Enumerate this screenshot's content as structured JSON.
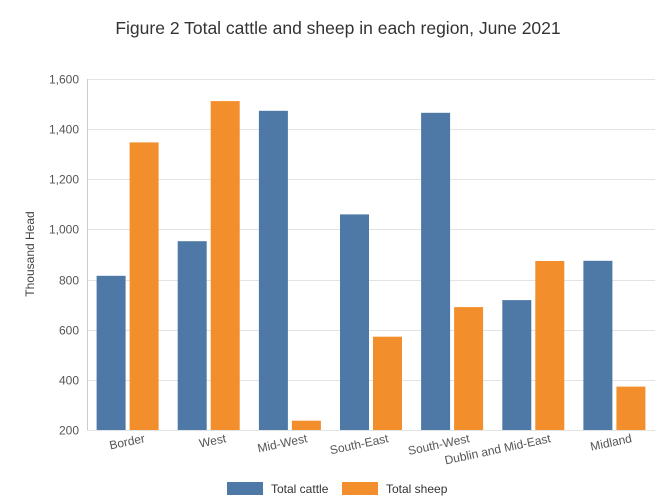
{
  "chart_data": {
    "type": "bar",
    "title": "Figure 2 Total cattle and sheep in each region, June 2021",
    "xlabel": "",
    "ylabel": "Thousand Head",
    "categories": [
      "Border",
      "West",
      "Mid-West",
      "South-East",
      "South-West",
      "Dublin and Mid-East",
      "Midland"
    ],
    "series": [
      {
        "name": "Total cattle",
        "color": "#4e79a7",
        "values": [
          815,
          953,
          1473,
          1060,
          1465,
          718,
          875
        ]
      },
      {
        "name": "Total sheep",
        "color": "#f28e2b",
        "values": [
          1347,
          1512,
          237,
          572,
          690,
          874,
          373
        ]
      }
    ],
    "ylim": [
      200,
      1600
    ],
    "yticks": [
      "1,600",
      "1,400",
      "1,200",
      "1,000",
      "800",
      "600",
      "400",
      "200"
    ],
    "grid": true,
    "legend_position": "bottom"
  }
}
